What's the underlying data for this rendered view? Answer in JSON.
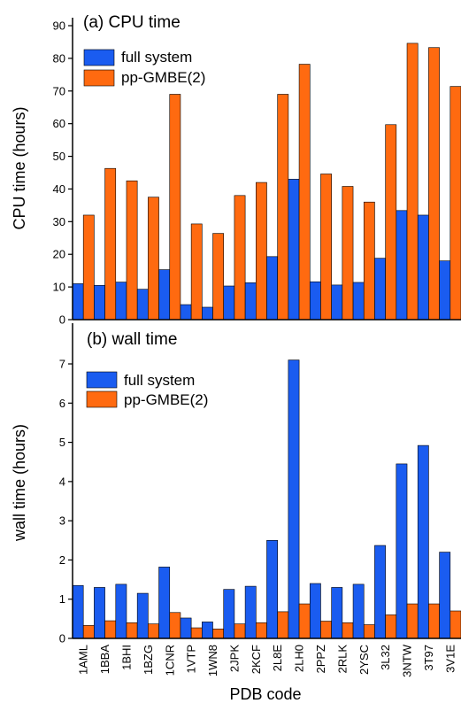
{
  "colors": {
    "full_system": "#1a5cf0",
    "pp_gmbe": "#ff6a10"
  },
  "xlabel": "PDB code",
  "chart_data": [
    {
      "type": "bar",
      "title": "(a) CPU time",
      "ylabel": "CPU time (hours)",
      "ylim": [
        0,
        90
      ],
      "yticks": [
        0,
        10,
        20,
        30,
        40,
        50,
        60,
        70,
        80,
        90
      ],
      "legend_position": "top-left",
      "categories": [
        "1AML",
        "1BBA",
        "1BHI",
        "1BZG",
        "1CNR",
        "1VTP",
        "1WN8",
        "2JPK",
        "2KCF",
        "2L8E",
        "2LH0",
        "2PPZ",
        "2RLK",
        "2YSC",
        "3L32",
        "3NTW",
        "3T97",
        "3V1E"
      ],
      "series": [
        {
          "name": "full system",
          "values": [
            11,
            10.5,
            11.5,
            9.3,
            15.3,
            4.6,
            3.8,
            10.3,
            11.3,
            19.3,
            43,
            11.6,
            10.6,
            11.4,
            18.8,
            33.4,
            32,
            18
          ]
        },
        {
          "name": "pp-GMBE(2)",
          "values": [
            32,
            46.3,
            42.5,
            37.5,
            69,
            29.3,
            26.4,
            38,
            42,
            69,
            78.2,
            44.6,
            40.8,
            36,
            59.7,
            84.6,
            83.3,
            71.4
          ]
        }
      ]
    },
    {
      "type": "bar",
      "title": "(b) wall time",
      "ylabel": "wall time (hours)",
      "ylim": [
        0,
        7.5
      ],
      "yticks": [
        0,
        1,
        2,
        3,
        4,
        5,
        6,
        7
      ],
      "legend_position": "top-left",
      "categories": [
        "1AML",
        "1BBA",
        "1BHI",
        "1BZG",
        "1CNR",
        "1VTP",
        "1WN8",
        "2JPK",
        "2KCF",
        "2L8E",
        "2LH0",
        "2PPZ",
        "2RLK",
        "2YSC",
        "3L32",
        "3NTW",
        "3T97",
        "3V1E"
      ],
      "series": [
        {
          "name": "full system",
          "values": [
            1.35,
            1.3,
            1.38,
            1.15,
            1.82,
            0.52,
            0.42,
            1.25,
            1.33,
            2.5,
            7.1,
            1.4,
            1.3,
            1.38,
            2.37,
            4.45,
            4.92,
            2.2
          ]
        },
        {
          "name": "pp-GMBE(2)",
          "values": [
            0.33,
            0.45,
            0.4,
            0.37,
            0.66,
            0.27,
            0.24,
            0.37,
            0.4,
            0.68,
            0.88,
            0.44,
            0.4,
            0.35,
            0.6,
            0.88,
            0.88,
            0.7
          ]
        }
      ]
    }
  ]
}
